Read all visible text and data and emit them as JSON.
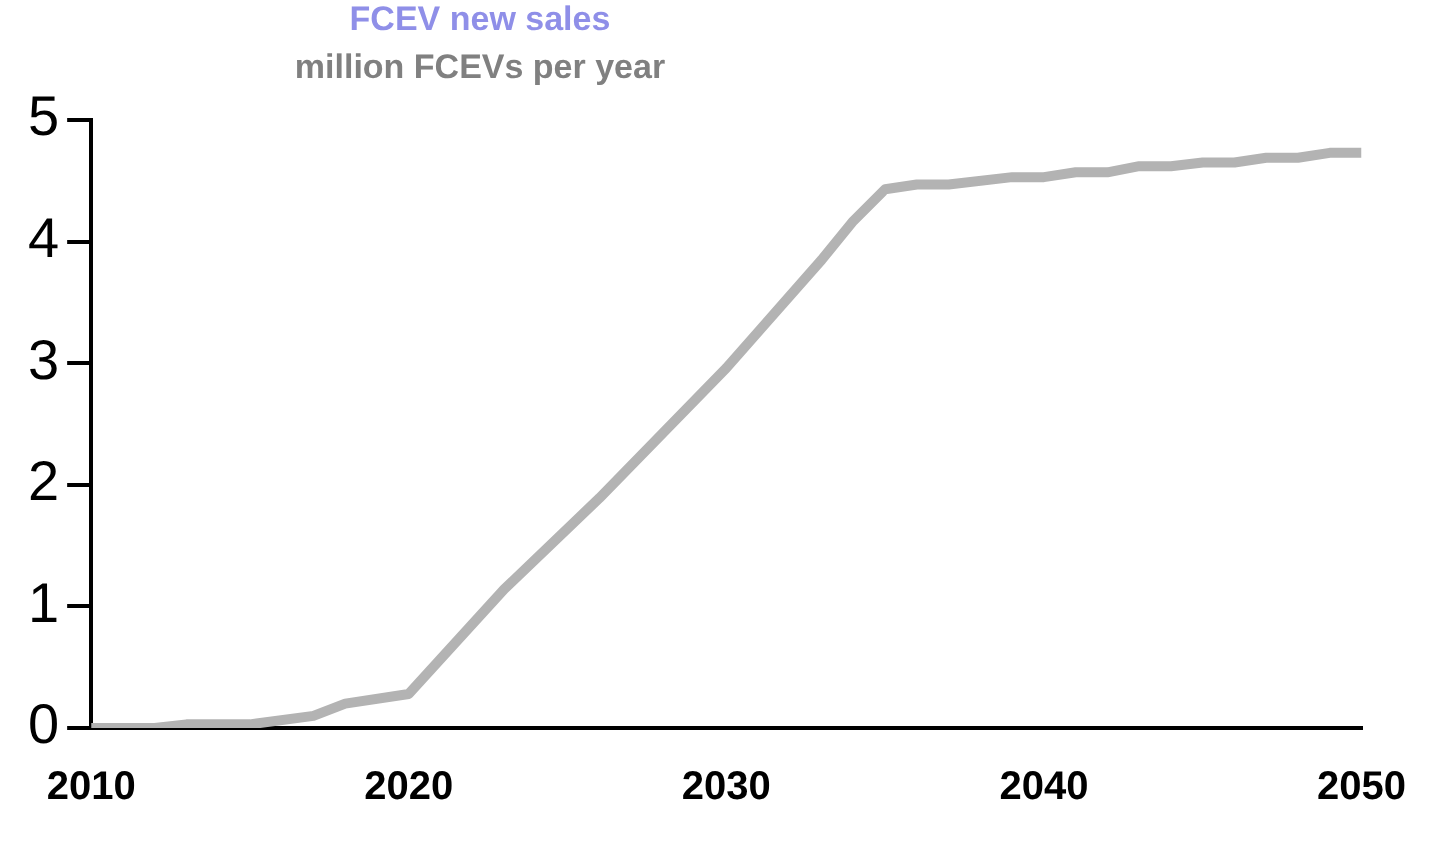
{
  "chart_data": {
    "type": "line",
    "title": "FCEV new sales",
    "subtitle": "million FCEVs per year",
    "x": [
      2010,
      2012,
      2013,
      2015,
      2017,
      2018,
      2020,
      2023,
      2026,
      2030,
      2033,
      2034,
      2035,
      2036,
      2037,
      2039,
      2040,
      2041,
      2042,
      2043,
      2044,
      2045,
      2046,
      2047,
      2048,
      2049,
      2050
    ],
    "series": [
      {
        "color": "#b3b3b3",
        "values": [
          0,
          0,
          0.03,
          0.03,
          0.1,
          0.2,
          0.28,
          1.14,
          1.89,
          2.96,
          3.85,
          4.17,
          4.43,
          4.47,
          4.47,
          4.53,
          4.53,
          4.57,
          4.57,
          4.62,
          4.62,
          4.65,
          4.65,
          4.69,
          4.69,
          4.73,
          4.73
        ]
      }
    ],
    "xlim": [
      2010,
      2050
    ],
    "xticks": [
      2010,
      2020,
      2030,
      2040,
      2050
    ],
    "ylim": [
      0,
      5
    ],
    "yticks": [
      0,
      1,
      2,
      3,
      4,
      5
    ],
    "grid": false,
    "legend": false,
    "marker": "none",
    "line_style": "solid"
  }
}
